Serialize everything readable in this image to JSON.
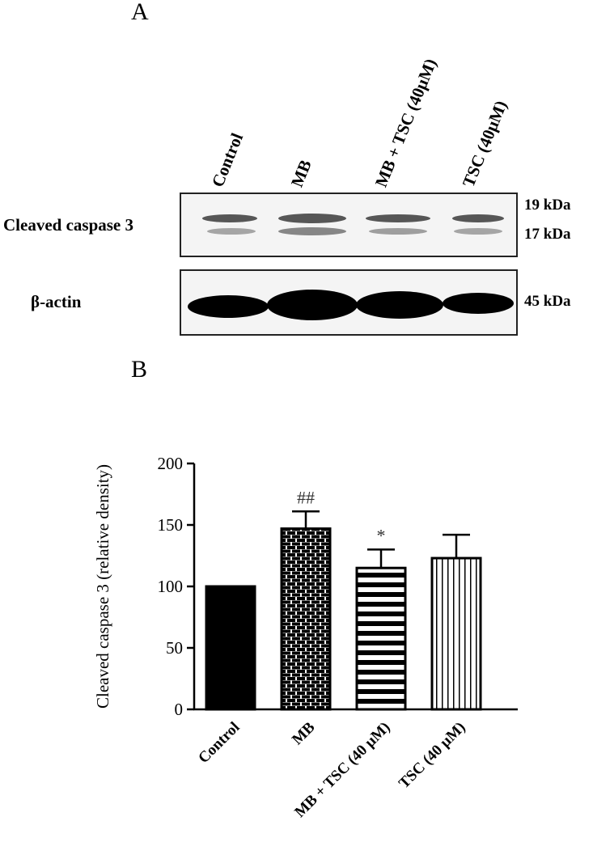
{
  "panel_a": {
    "letter": "A",
    "lanes": [
      "Control",
      "MB",
      "MB + TSC (40µM)",
      "TSC (40µM)"
    ],
    "rows": [
      {
        "label": "Cleaved caspase 3",
        "markers": [
          "19  kDa",
          "17  kDa"
        ]
      },
      {
        "label": "β-actin",
        "markers": [
          "45  kDa"
        ]
      }
    ]
  },
  "panel_b": {
    "letter": "B"
  },
  "chart_data": {
    "type": "bar",
    "title": "",
    "xlabel": "",
    "ylabel": "Cleaved caspase 3 (relative density)",
    "categories": [
      "Control",
      "MB",
      "MB + TSC (40 µM)",
      "TSC (40 µM)"
    ],
    "values": [
      100,
      147,
      115,
      123
    ],
    "errors": [
      0,
      14,
      15,
      19
    ],
    "annotations": [
      "",
      "##",
      "*",
      ""
    ],
    "fills": [
      "solid",
      "brick",
      "horizontal-stripes",
      "vertical-stripes"
    ],
    "ylim": [
      0,
      200
    ],
    "yticks": [
      0,
      50,
      100,
      150,
      200
    ],
    "grid": false
  }
}
